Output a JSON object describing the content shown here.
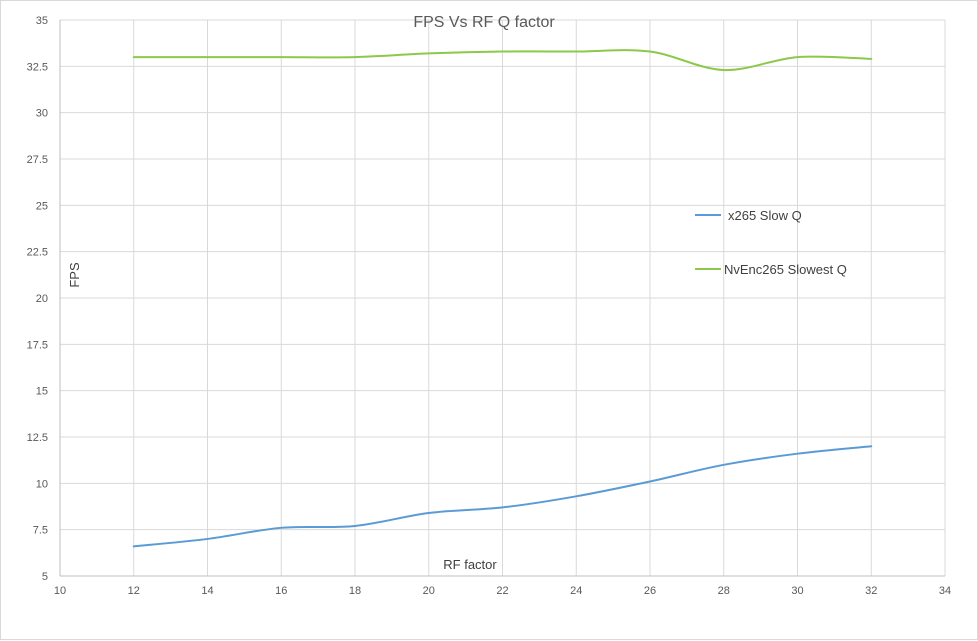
{
  "chart_data": {
    "type": "line",
    "title": "FPS Vs RF Q factor",
    "xlabel": "RF factor",
    "ylabel": "FPS",
    "xlim": [
      10,
      34
    ],
    "ylim": [
      5,
      35
    ],
    "x_ticks": [
      "10",
      "12",
      "14",
      "16",
      "18",
      "20",
      "22",
      "24",
      "26",
      "28",
      "30",
      "32",
      "34"
    ],
    "y_ticks": [
      "5",
      "7.5",
      "10",
      "12.5",
      "15",
      "17.5",
      "20",
      "22.5",
      "25",
      "27.5",
      "30",
      "32.5",
      "35"
    ],
    "grid": true,
    "smooth": true,
    "legend_position": "right",
    "series": [
      {
        "name": "x265 Slow Q",
        "color": "#5b9bd5",
        "x": [
          12,
          14,
          16,
          18,
          20,
          22,
          24,
          26,
          28,
          30,
          32
        ],
        "y": [
          6.6,
          7.0,
          7.6,
          7.7,
          8.4,
          8.7,
          9.3,
          10.1,
          11.0,
          11.6,
          12.0
        ]
      },
      {
        "name": "NvEnc265 Slowest Q",
        "color": "#8cc84b",
        "x": [
          12,
          14,
          16,
          18,
          20,
          22,
          24,
          26,
          28,
          30,
          32
        ],
        "y": [
          33.0,
          33.0,
          33.0,
          33.0,
          33.2,
          33.3,
          33.3,
          33.3,
          32.3,
          33.0,
          32.9
        ]
      }
    ]
  }
}
